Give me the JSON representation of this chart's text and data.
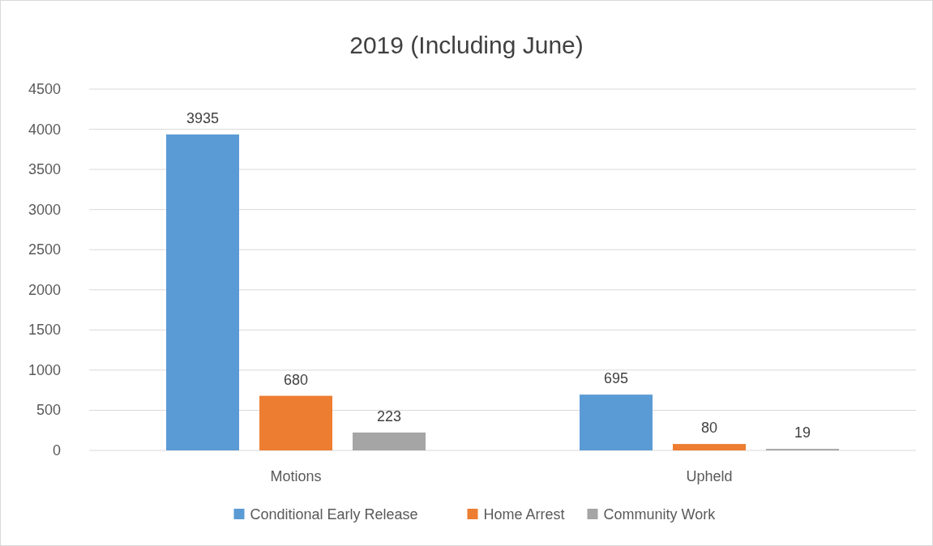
{
  "chart_data": {
    "type": "bar",
    "title": "2019 (Including June)",
    "categories": [
      "Motions",
      "Upheld"
    ],
    "series": [
      {
        "name": "Conditional Early Release",
        "color": "#5b9bd5",
        "values": [
          3935,
          695
        ]
      },
      {
        "name": "Home Arrest",
        "color": "#ed7d31",
        "values": [
          680,
          80
        ]
      },
      {
        "name": "Community Work",
        "color": "#a5a5a5",
        "values": [
          223,
          19
        ]
      }
    ],
    "ylim": [
      0,
      4500
    ],
    "yticks": [
      0,
      500,
      1000,
      1500,
      2000,
      2500,
      3000,
      3500,
      4000,
      4500
    ],
    "grid": "y",
    "legend": "bottom",
    "data_labels": true
  }
}
